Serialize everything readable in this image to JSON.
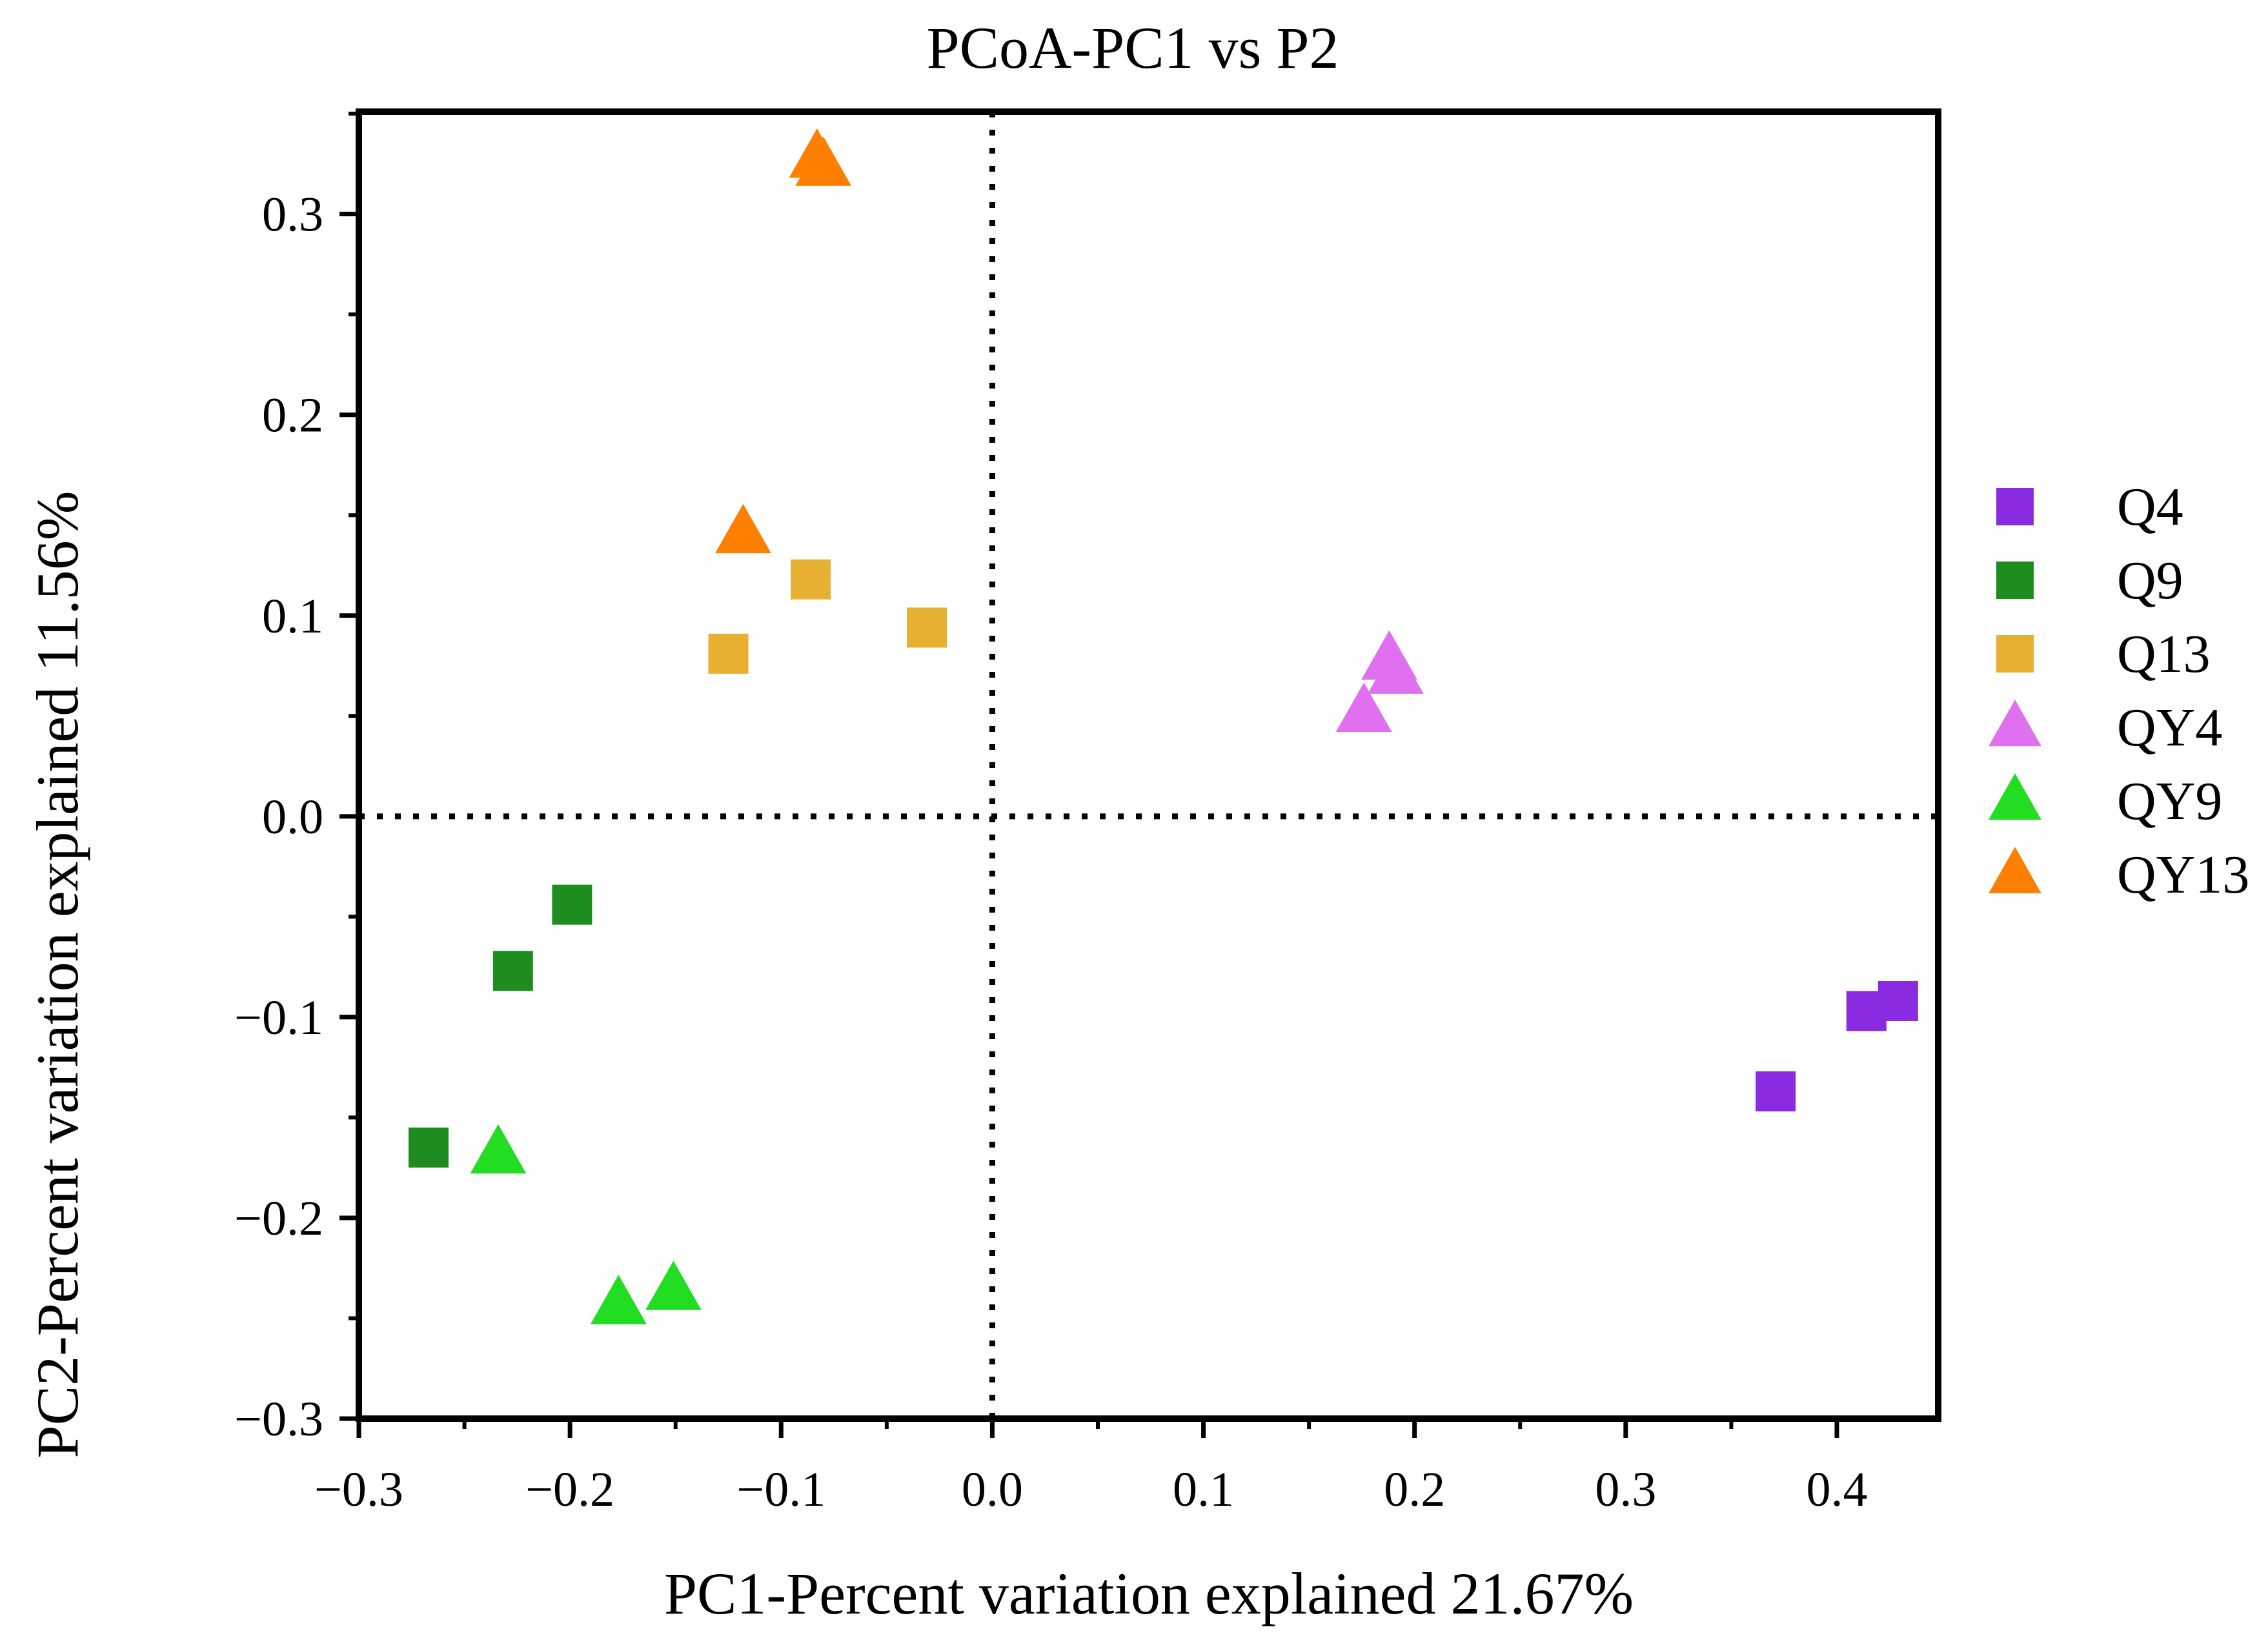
{
  "chart_data": {
    "type": "scatter",
    "title": "PCoA-PC1 vs P2",
    "xlabel": "PC1-Percent variation explained 21.67%",
    "ylabel": "PC2-Percent variation explained 11.56%",
    "xlim": [
      -0.3,
      0.448
    ],
    "ylim": [
      -0.3,
      0.351
    ],
    "xticks": [
      -0.3,
      -0.2,
      -0.1,
      0.0,
      0.1,
      0.2,
      0.3,
      0.4
    ],
    "xtick_labels": [
      "−0.3",
      "−0.2",
      "−0.1",
      "0.0",
      "0.1",
      "0.2",
      "0.3",
      "0.4"
    ],
    "yticks": [
      -0.3,
      -0.2,
      -0.1,
      0.0,
      0.1,
      0.2,
      0.3
    ],
    "ytick_labels": [
      "−0.3",
      "−0.2",
      "−0.1",
      "0.0",
      "0.1",
      "0.2",
      "0.3"
    ],
    "grid": false,
    "reference_lines": {
      "x": 0,
      "y": 0,
      "style": "dotted"
    },
    "legend_position": "right",
    "series": [
      {
        "name": "Q4",
        "marker": "square",
        "color": "#8A2BE2",
        "points": [
          [
            0.371,
            -0.137
          ],
          [
            0.414,
            -0.097
          ],
          [
            0.429,
            -0.092
          ]
        ]
      },
      {
        "name": "Q9",
        "marker": "square",
        "color": "#1E8C1E",
        "points": [
          [
            -0.199,
            -0.044
          ],
          [
            -0.227,
            -0.077
          ],
          [
            -0.267,
            -0.165
          ]
        ]
      },
      {
        "name": "Q13",
        "marker": "square",
        "color": "#E8B030",
        "points": [
          [
            -0.086,
            0.118
          ],
          [
            -0.125,
            0.081
          ],
          [
            -0.031,
            0.094
          ]
        ]
      },
      {
        "name": "QY4",
        "marker": "triangle",
        "color": "#E070F0",
        "points": [
          [
            0.188,
            0.078
          ],
          [
            0.191,
            0.071
          ],
          [
            0.176,
            0.052
          ]
        ]
      },
      {
        "name": "QY9",
        "marker": "triangle",
        "color": "#22DD22",
        "points": [
          [
            -0.234,
            -0.168
          ],
          [
            -0.177,
            -0.243
          ],
          [
            -0.151,
            -0.236
          ]
        ]
      },
      {
        "name": "QY13",
        "marker": "triangle",
        "color": "#FF8000",
        "points": [
          [
            -0.083,
            0.328
          ],
          [
            -0.08,
            0.324
          ],
          [
            -0.118,
            0.141
          ]
        ]
      }
    ]
  }
}
